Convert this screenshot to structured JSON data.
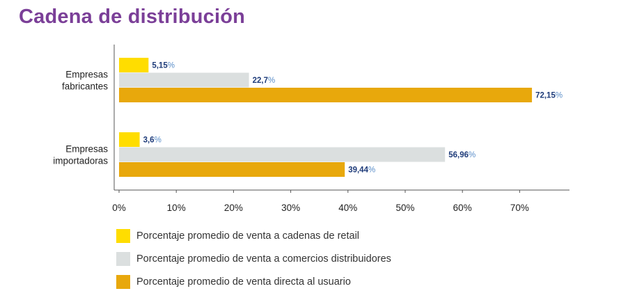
{
  "title": "Cadena de distribución",
  "chart_data": {
    "type": "bar",
    "orientation": "horizontal",
    "title": "",
    "xlabel": "",
    "ylabel": "",
    "categories": [
      [
        "Empresas",
        "fabricantes"
      ],
      [
        "Empresas",
        "importadoras"
      ]
    ],
    "series": [
      {
        "name": "Porcentaje promedio de venta a cadenas de retail",
        "color": "#ffdd00",
        "values": [
          5.15,
          3.6
        ],
        "labels": [
          "5,15",
          "3,6"
        ]
      },
      {
        "name": "Porcentaje promedio de venta a comercios distribuidores",
        "color": "#dbdfdf",
        "values": [
          22.7,
          56.96
        ],
        "labels": [
          "22,7",
          "56,96"
        ]
      },
      {
        "name": "Porcentaje promedio de venta directa al usuario",
        "color": "#e8a80c",
        "values": [
          72.15,
          39.44
        ],
        "labels": [
          "72,15",
          "39,44"
        ]
      }
    ],
    "value_suffix": "%",
    "xlim": [
      0,
      78
    ],
    "xticks": [
      0,
      10,
      20,
      30,
      40,
      50,
      60,
      70
    ],
    "xtick_labels": [
      "0%",
      "10%",
      "20%",
      "30%",
      "40%",
      "50%",
      "60%",
      "70%"
    ],
    "grid": false,
    "legend": "bottom"
  }
}
